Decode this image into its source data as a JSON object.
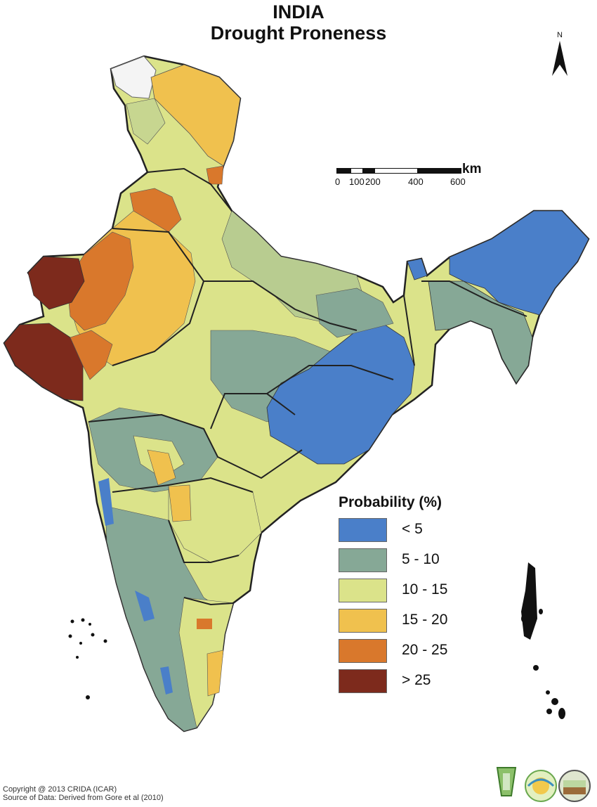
{
  "title": "INDIA",
  "subtitle": "Drought Proneness",
  "north_label": "N",
  "scale": {
    "unit": "km",
    "ticks": [
      "0",
      "100",
      "200",
      "400",
      "600"
    ]
  },
  "legend": {
    "title": "Probability (%)",
    "items": [
      {
        "label": "< 5",
        "color": "#4a7fc9"
      },
      {
        "label": "5 - 10",
        "color": "#86a896"
      },
      {
        "label": "10 - 15",
        "color": "#dbe38a"
      },
      {
        "label": "15 - 20",
        "color": "#f0c14e"
      },
      {
        "label": "20 - 25",
        "color": "#d9782c"
      },
      {
        "label": "> 25",
        "color": "#7d2a1c"
      }
    ]
  },
  "footer": {
    "copyright": "Copyright @ 2013 CRIDA (ICAR)",
    "source": "Source of Data: Derived from Gore et al (2010)"
  }
}
